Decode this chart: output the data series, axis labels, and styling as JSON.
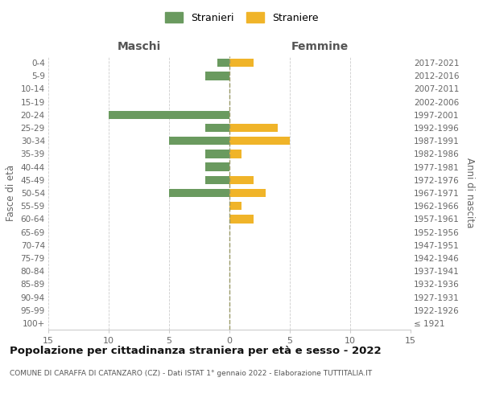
{
  "age_groups": [
    "100+",
    "95-99",
    "90-94",
    "85-89",
    "80-84",
    "75-79",
    "70-74",
    "65-69",
    "60-64",
    "55-59",
    "50-54",
    "45-49",
    "40-44",
    "35-39",
    "30-34",
    "25-29",
    "20-24",
    "15-19",
    "10-14",
    "5-9",
    "0-4"
  ],
  "birth_years": [
    "≤ 1921",
    "1922-1926",
    "1927-1931",
    "1932-1936",
    "1937-1941",
    "1942-1946",
    "1947-1951",
    "1952-1956",
    "1957-1961",
    "1962-1966",
    "1967-1971",
    "1972-1976",
    "1977-1981",
    "1982-1986",
    "1987-1991",
    "1992-1996",
    "1997-2001",
    "2002-2006",
    "2007-2011",
    "2012-2016",
    "2017-2021"
  ],
  "maschi": [
    0,
    0,
    0,
    0,
    0,
    0,
    0,
    0,
    0,
    0,
    5,
    2,
    2,
    2,
    5,
    2,
    10,
    0,
    0,
    2,
    1
  ],
  "femmine": [
    0,
    0,
    0,
    0,
    0,
    0,
    0,
    0,
    2,
    1,
    3,
    2,
    0,
    1,
    5,
    4,
    0,
    0,
    0,
    0,
    2
  ],
  "color_maschi": "#6a9a5f",
  "color_femmine": "#f0b429",
  "xlim": 15,
  "title": "Popolazione per cittadinanza straniera per età e sesso - 2022",
  "subtitle": "COMUNE DI CARAFFA DI CATANZARO (CZ) - Dati ISTAT 1° gennaio 2022 - Elaborazione TUTTITALIA.IT",
  "ylabel_left": "Fasce di età",
  "ylabel_right": "Anni di nascita",
  "header_left": "Maschi",
  "header_right": "Femmine",
  "legend_maschi": "Stranieri",
  "legend_femmine": "Straniere",
  "bg_color": "#ffffff",
  "grid_color": "#cccccc",
  "center_line_color": "#999966",
  "tick_color": "#666666"
}
